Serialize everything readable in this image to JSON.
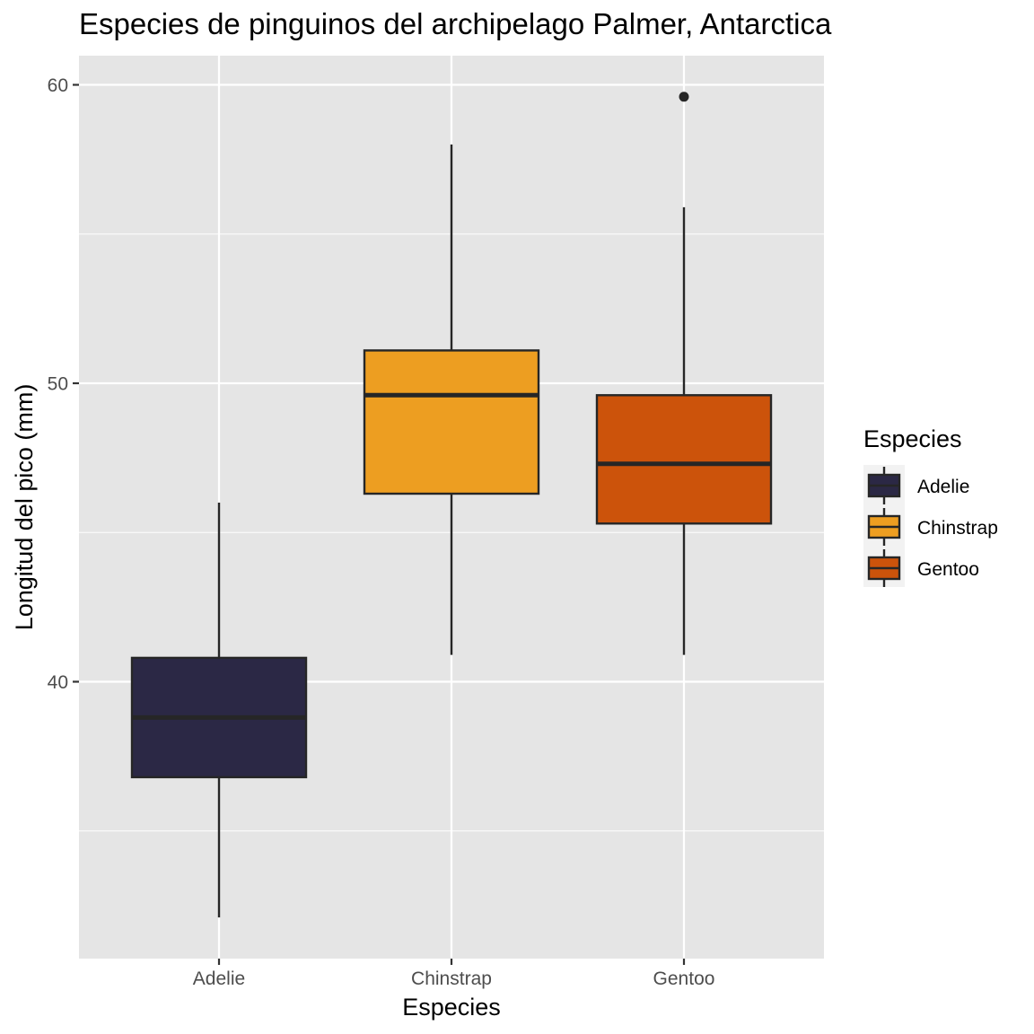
{
  "chart_data": {
    "type": "boxplot",
    "title": "Especies de pinguinos del archipelago Palmer, Antarctica",
    "xlabel": "Especies",
    "ylabel": "Longitud del pico (mm)",
    "categories": [
      "Adelie",
      "Chinstrap",
      "Gentoo"
    ],
    "ylim": [
      31.1,
      61.0
    ],
    "yticks": [
      40,
      50,
      60
    ],
    "ytick_labels": [
      "40",
      "50",
      "60"
    ],
    "grid": true,
    "legend": {
      "title": "Especies",
      "position": "right",
      "entries": [
        "Adelie",
        "Chinstrap",
        "Gentoo"
      ]
    },
    "series": [
      {
        "category": "Adelie",
        "color": "#2b2845",
        "whisker_low": 32.1,
        "q1": 36.8,
        "median": 38.8,
        "q3": 40.8,
        "whisker_high": 46.0,
        "outliers": []
      },
      {
        "category": "Chinstrap",
        "color": "#ed9e21",
        "whisker_low": 40.9,
        "q1": 46.3,
        "median": 49.6,
        "q3": 51.1,
        "whisker_high": 58.0,
        "outliers": []
      },
      {
        "category": "Gentoo",
        "color": "#cc530b",
        "whisker_low": 40.9,
        "q1": 45.3,
        "median": 47.3,
        "q3": 49.6,
        "whisker_high": 55.9,
        "outliers": [
          59.6
        ]
      }
    ]
  }
}
